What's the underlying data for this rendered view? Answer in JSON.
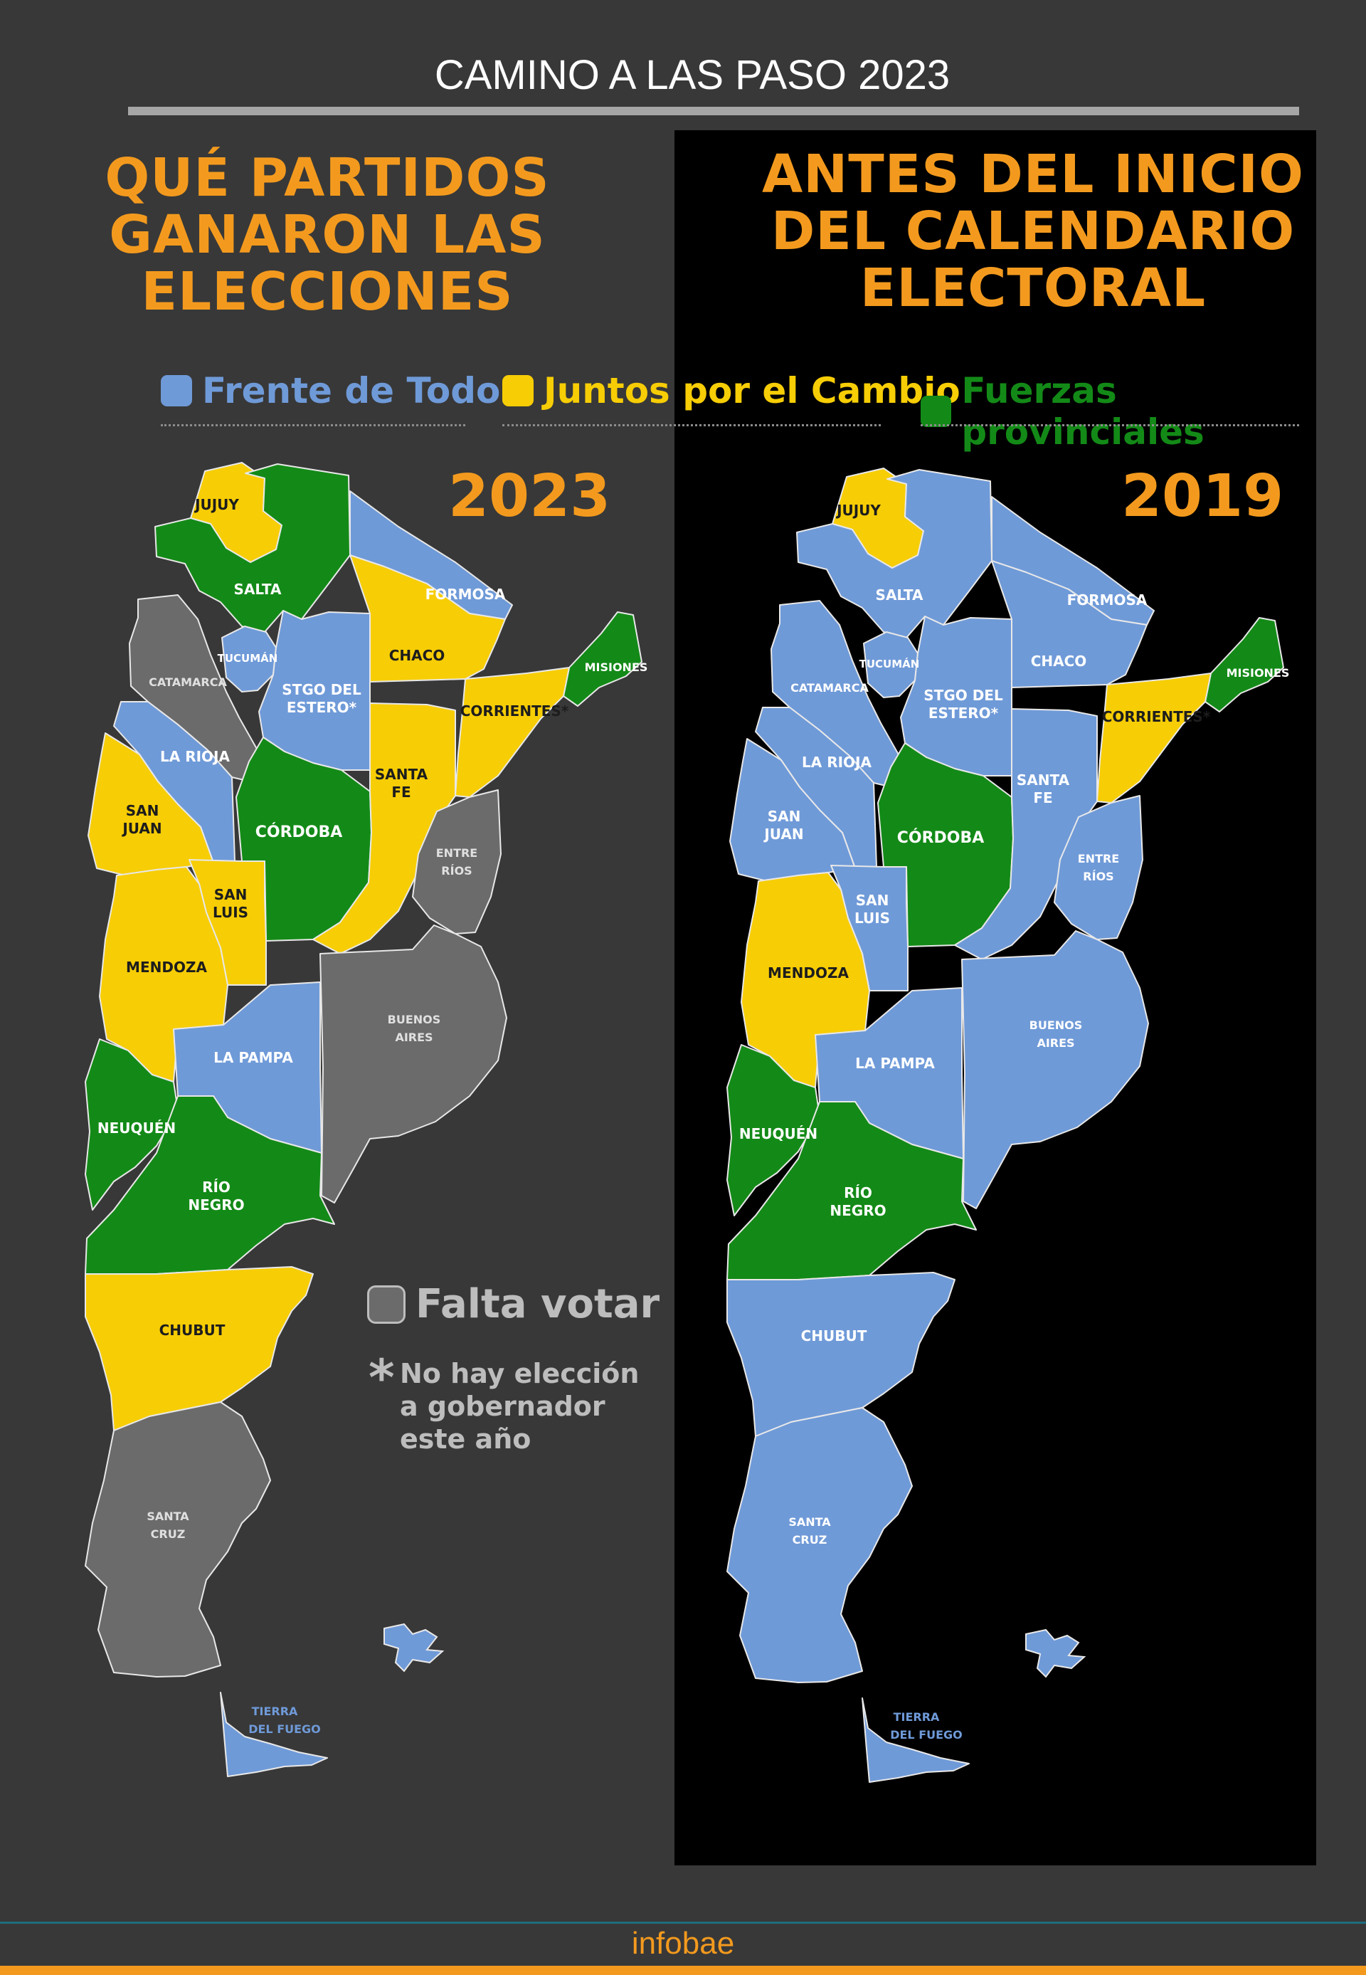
{
  "header": {
    "title": "CAMINO A LAS PASO 2023"
  },
  "left_headline": [
    "QUÉ PARTIDOS",
    "GANARON LAS",
    "ELECCIONES"
  ],
  "right_headline": [
    "ANTES DEL INICIO",
    "DEL CALENDARIO",
    "ELECTORAL"
  ],
  "legend": [
    {
      "label": "Frente de Todos",
      "color": "#6f9ad8"
    },
    {
      "label": "Juntos por el Cambio",
      "color": "#f7cd05"
    },
    {
      "label": "Fuerzas provinciales",
      "color": "#138a17"
    }
  ],
  "colors": {
    "frente_de_todos": "#6f9ad8",
    "juntos_por_el_cambio": "#f7cd05",
    "fuerzas_provinciales": "#138a17",
    "falta_votar": "#6b6b6b",
    "accent": "#f39a1e"
  },
  "maps": [
    {
      "year": "2023",
      "provinces": [
        {
          "name": "JUJUY",
          "result": "juntos_por_el_cambio"
        },
        {
          "name": "SALTA",
          "result": "fuerzas_provinciales"
        },
        {
          "name": "FORMOSA",
          "result": "frente_de_todos"
        },
        {
          "name": "MISIONES",
          "result": "fuerzas_provinciales"
        },
        {
          "name": "CHACO",
          "result": "juntos_por_el_cambio"
        },
        {
          "name": "CATAMARCA",
          "result": "falta_votar"
        },
        {
          "name": "TUCUMÁN",
          "result": "frente_de_todos"
        },
        {
          "name": "STGO DEL ESTERO*",
          "result": "frente_de_todos"
        },
        {
          "name": "CORRIENTES*",
          "result": "juntos_por_el_cambio"
        },
        {
          "name": "LA RIOJA",
          "result": "frente_de_todos"
        },
        {
          "name": "SAN JUAN",
          "result": "juntos_por_el_cambio"
        },
        {
          "name": "CÓRDOBA",
          "result": "fuerzas_provinciales"
        },
        {
          "name": "SANTA FE",
          "result": "juntos_por_el_cambio"
        },
        {
          "name": "ENTRE RÍOS",
          "result": "falta_votar"
        },
        {
          "name": "SAN LUIS",
          "result": "juntos_por_el_cambio"
        },
        {
          "name": "MENDOZA",
          "result": "juntos_por_el_cambio"
        },
        {
          "name": "BUENOS AIRES",
          "result": "falta_votar"
        },
        {
          "name": "LA PAMPA",
          "result": "frente_de_todos"
        },
        {
          "name": "NEUQUÉN",
          "result": "fuerzas_provinciales"
        },
        {
          "name": "RÍO NEGRO",
          "result": "fuerzas_provinciales"
        },
        {
          "name": "CHUBUT",
          "result": "juntos_por_el_cambio"
        },
        {
          "name": "SANTA CRUZ",
          "result": "falta_votar"
        },
        {
          "name": "TIERRA DEL FUEGO",
          "result": "frente_de_todos"
        }
      ]
    },
    {
      "year": "2019",
      "provinces": [
        {
          "name": "JUJUY",
          "result": "juntos_por_el_cambio"
        },
        {
          "name": "SALTA",
          "result": "frente_de_todos"
        },
        {
          "name": "FORMOSA",
          "result": "frente_de_todos"
        },
        {
          "name": "MISIONES",
          "result": "fuerzas_provinciales"
        },
        {
          "name": "CHACO",
          "result": "frente_de_todos"
        },
        {
          "name": "CATAMARCA",
          "result": "frente_de_todos"
        },
        {
          "name": "TUCUMÁN",
          "result": "frente_de_todos"
        },
        {
          "name": "STGO DEL ESTERO*",
          "result": "frente_de_todos"
        },
        {
          "name": "CORRIENTES*",
          "result": "juntos_por_el_cambio"
        },
        {
          "name": "LA RIOJA",
          "result": "frente_de_todos"
        },
        {
          "name": "SAN JUAN",
          "result": "frente_de_todos"
        },
        {
          "name": "CÓRDOBA",
          "result": "fuerzas_provinciales"
        },
        {
          "name": "SANTA FE",
          "result": "frente_de_todos"
        },
        {
          "name": "ENTRE RÍOS",
          "result": "frente_de_todos"
        },
        {
          "name": "SAN LUIS",
          "result": "frente_de_todos"
        },
        {
          "name": "MENDOZA",
          "result": "juntos_por_el_cambio"
        },
        {
          "name": "BUENOS AIRES",
          "result": "frente_de_todos"
        },
        {
          "name": "LA PAMPA",
          "result": "frente_de_todos"
        },
        {
          "name": "NEUQUÉN",
          "result": "fuerzas_provinciales"
        },
        {
          "name": "RÍO NEGRO",
          "result": "fuerzas_provinciales"
        },
        {
          "name": "CHUBUT",
          "result": "frente_de_todos"
        },
        {
          "name": "SANTA CRUZ",
          "result": "frente_de_todos"
        },
        {
          "name": "TIERRA DEL FUEGO",
          "result": "frente_de_todos"
        }
      ]
    }
  ],
  "notes": {
    "pending_label": "Falta votar",
    "asterisk": "*",
    "asterisk_lines": [
      "No hay elección",
      "a gobernador",
      "este año"
    ]
  },
  "footer": {
    "logo": "infobae"
  }
}
